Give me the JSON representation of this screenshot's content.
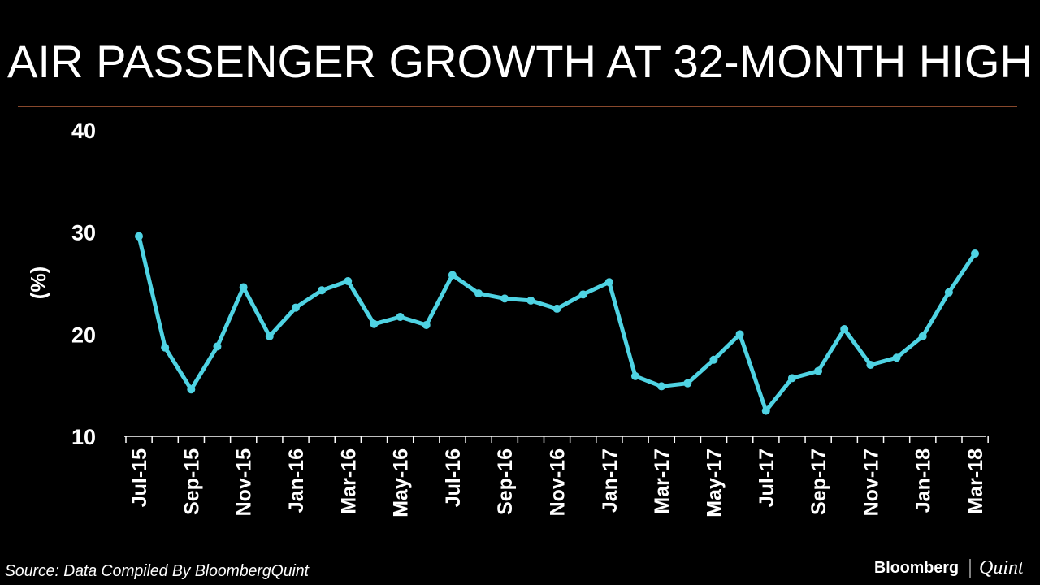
{
  "chart_data": {
    "type": "line",
    "title": "AIR PASSENGER GROWTH AT 32-MONTH HIGH",
    "ylabel": "(%)",
    "xlabel": "",
    "ylim": [
      10,
      40
    ],
    "yticks": [
      "10",
      "20",
      "30",
      "40"
    ],
    "grid": false,
    "legend": "none",
    "color": "#4fd3e3",
    "x": [
      "Jul-15",
      "Aug-15",
      "Sep-15",
      "Oct-15",
      "Nov-15",
      "Dec-15",
      "Jan-16",
      "Feb-16",
      "Mar-16",
      "Apr-16",
      "May-16",
      "Jun-16",
      "Jul-16",
      "Aug-16",
      "Sep-16",
      "Oct-16",
      "Nov-16",
      "Dec-16",
      "Jan-17",
      "Feb-17",
      "Mar-17",
      "Apr-17",
      "May-17",
      "Jun-17",
      "Jul-17",
      "Aug-17",
      "Sep-17",
      "Oct-17",
      "Nov-17",
      "Dec-17",
      "Jan-18",
      "Feb-18",
      "Mar-18"
    ],
    "xtick_labels": [
      "Jul-15",
      "Sep-15",
      "Nov-15",
      "Jan-16",
      "Mar-16",
      "May-16",
      "Jul-16",
      "Sep-16",
      "Nov-16",
      "Jan-17",
      "Mar-17",
      "May-17",
      "Jul-17",
      "Sep-17",
      "Nov-17",
      "Jan-18",
      "Mar-18"
    ],
    "values": [
      29.6,
      18.7,
      14.6,
      18.8,
      24.6,
      19.8,
      22.6,
      24.3,
      25.2,
      21.0,
      21.7,
      20.9,
      25.8,
      24.0,
      23.5,
      23.3,
      22.5,
      23.9,
      25.1,
      15.9,
      14.9,
      15.2,
      17.5,
      20.0,
      12.5,
      15.7,
      16.4,
      20.5,
      17.0,
      17.7,
      19.8,
      24.1,
      27.9
    ]
  },
  "footer": {
    "source": "Source: Data Compiled By BloombergQuint",
    "logo_left": "Bloomberg",
    "logo_right": "Quint"
  }
}
